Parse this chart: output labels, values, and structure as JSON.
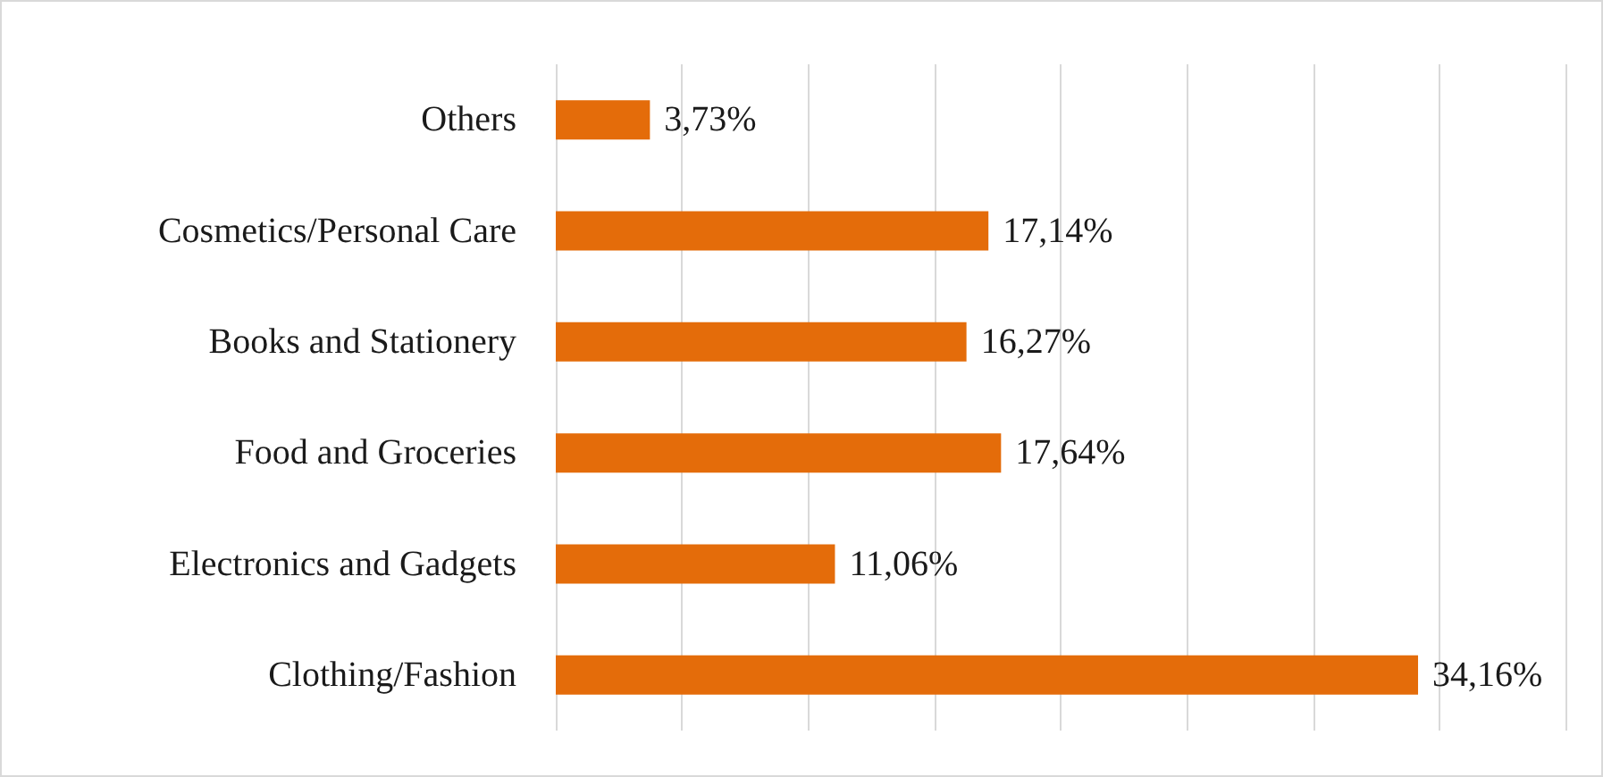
{
  "chart_data": {
    "type": "bar",
    "orientation": "horizontal",
    "categories": [
      "Others",
      "Cosmetics/Personal Care",
      "Books and Stationery",
      "Food and Groceries",
      "Electronics and Gadgets",
      "Clothing/Fashion"
    ],
    "values": [
      3.73,
      17.14,
      16.27,
      17.64,
      11.06,
      34.16
    ],
    "value_labels": [
      "3,73%",
      "17,14%",
      "16,27%",
      "17,64%",
      "11,06%",
      "34,16%"
    ],
    "color": "#e46c0a",
    "xlim": [
      0,
      40
    ],
    "xticks": [
      {
        "value": 0,
        "label": null
      },
      {
        "value": 5,
        "label": null
      },
      {
        "value": 10,
        "label": null
      },
      {
        "value": 15,
        "label": null
      },
      {
        "value": 20,
        "label": null
      },
      {
        "value": 25,
        "label": null
      },
      {
        "value": 30,
        "label": null
      },
      {
        "value": 35,
        "label": null
      },
      {
        "value": 40,
        "label": null
      }
    ],
    "grid": "x",
    "tick_labels": "y"
  }
}
